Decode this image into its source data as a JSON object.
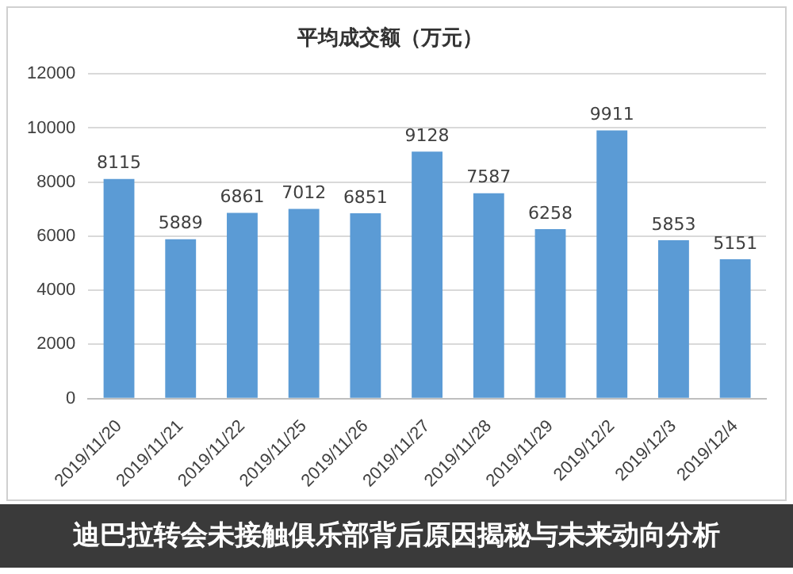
{
  "chart_data": {
    "type": "bar",
    "title": "平均成交额（万元）",
    "categories": [
      "2019/11/20",
      "2019/11/21",
      "2019/11/22",
      "2019/11/25",
      "2019/11/26",
      "2019/11/27",
      "2019/11/28",
      "2019/11/29",
      "2019/12/2",
      "2019/12/3",
      "2019/12/4"
    ],
    "values": [
      8115,
      5889,
      6861,
      7012,
      6851,
      9128,
      7587,
      6258,
      9911,
      5853,
      5151
    ],
    "color": "#5b9bd5",
    "ylim": [
      0,
      12000
    ],
    "yticks": [
      0,
      2000,
      4000,
      6000,
      8000,
      10000,
      12000
    ],
    "grid": "y",
    "data_labels": true,
    "legend": false,
    "annotations": [
      "迪巴拉转会未接触俱乐部背后原因揭秘与未来动向分析"
    ]
  }
}
